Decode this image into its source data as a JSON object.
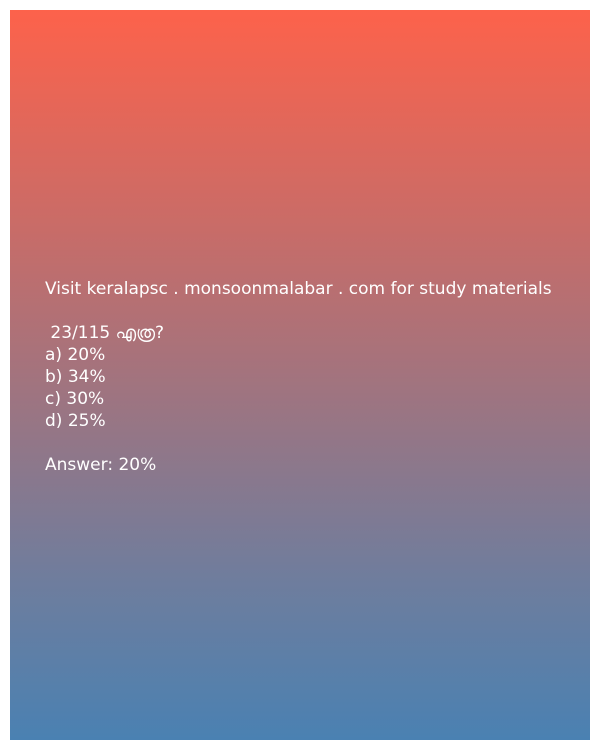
{
  "header": {
    "visit_text": "Visit keralapsc . monsoonmalabar . com for study materials"
  },
  "question": {
    "text": " 23/115 എത്ര?"
  },
  "options": [
    "a) 20%",
    "b) 34%",
    "c) 30%",
    "d) 25%"
  ],
  "answer": {
    "text": "Answer: 20%"
  },
  "colors": {
    "gradient_top": "#fd624b",
    "gradient_bottom": "#4a81b2",
    "text": "#ffffff"
  }
}
